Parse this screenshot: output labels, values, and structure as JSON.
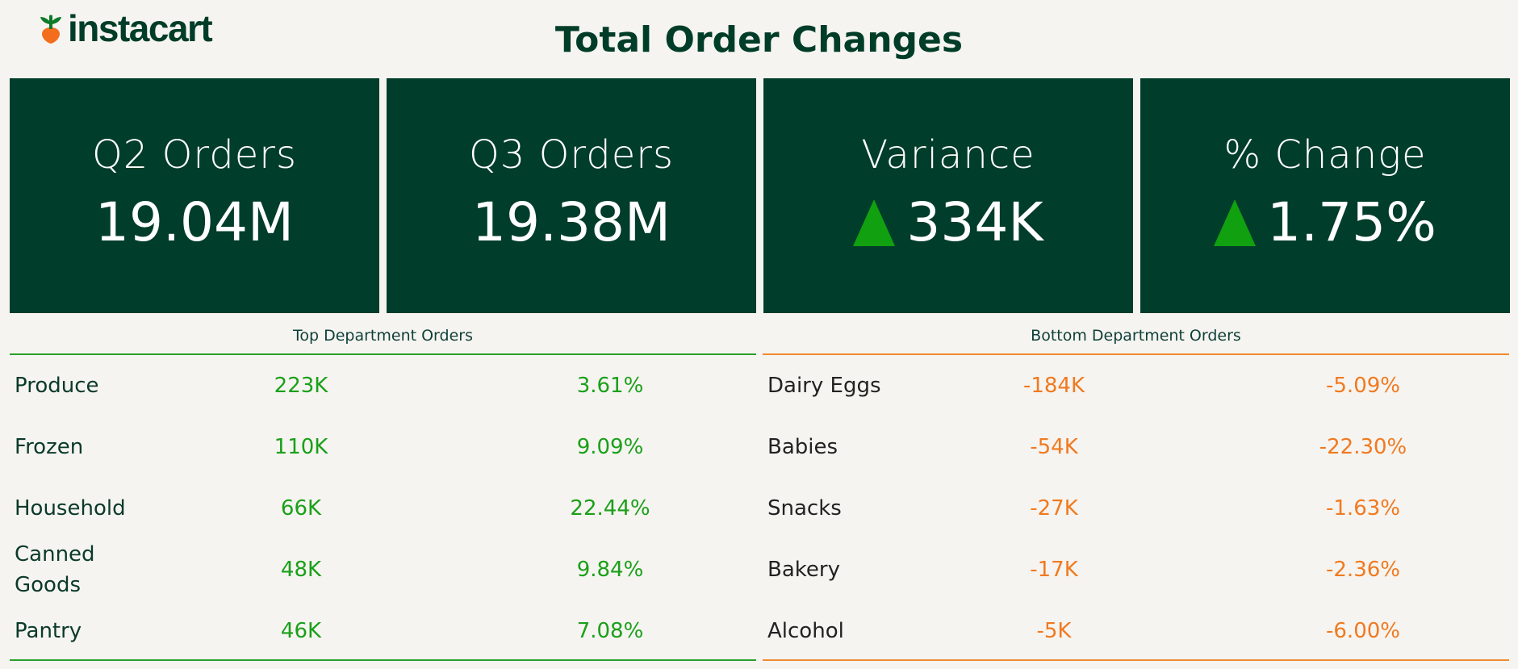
{
  "brand": {
    "logo_text": "instacart",
    "primary_color": "#003d29",
    "carrot_color": "#f36d1d"
  },
  "title": "Total Order Changes",
  "kpis": [
    {
      "label": "Q2 Orders",
      "value": "19.04M",
      "indicator": ""
    },
    {
      "label": "Q3 Orders",
      "value": "19.38M",
      "indicator": ""
    },
    {
      "label": "Variance",
      "value": "334K",
      "indicator": "up-triangle-icon"
    },
    {
      "label": "% Change",
      "value": "1.75%",
      "indicator": "up-triangle-icon"
    }
  ],
  "colors": {
    "kpi_bg": "#003d2a",
    "positive": "#1aa01a",
    "negative": "#f07a20",
    "background": "#f6f4f0"
  },
  "top_departments": {
    "header": "Top Department Orders",
    "rows": [
      {
        "name": "Produce",
        "change": "223K",
        "pct": "3.61%"
      },
      {
        "name": "Frozen",
        "change": "110K",
        "pct": "9.09%"
      },
      {
        "name": "Household",
        "change": "66K",
        "pct": "22.44%"
      },
      {
        "name": "Canned Goods",
        "change": "48K",
        "pct": "9.84%"
      },
      {
        "name": "Pantry",
        "change": "46K",
        "pct": "7.08%"
      }
    ]
  },
  "bottom_departments": {
    "header": "Bottom Department Orders",
    "rows": [
      {
        "name": "Dairy Eggs",
        "change": "-184K",
        "pct": "-5.09%"
      },
      {
        "name": "Babies",
        "change": "-54K",
        "pct": "-22.30%"
      },
      {
        "name": "Snacks",
        "change": "-27K",
        "pct": "-1.63%"
      },
      {
        "name": "Bakery",
        "change": "-17K",
        "pct": "-2.36%"
      },
      {
        "name": "Alcohol",
        "change": "-5K",
        "pct": "-6.00%"
      }
    ]
  }
}
